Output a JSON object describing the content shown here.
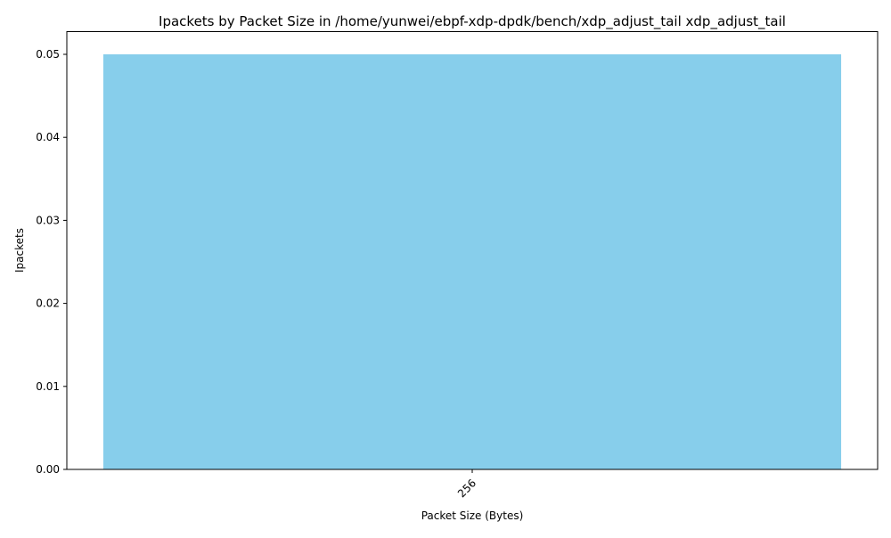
{
  "chart_data": {
    "type": "bar",
    "title": "Ipackets by Packet Size in /home/yunwei/ebpf-xdp-dpdk/bench/xdp_adjust_tail xdp_adjust_tail",
    "xlabel": "Packet Size (Bytes)",
    "ylabel": "Ipackets",
    "categories": [
      "256"
    ],
    "values": [
      0.05
    ],
    "ylim": [
      0,
      0.05
    ],
    "yticks": [
      0.0,
      0.01,
      0.02,
      0.03,
      0.04,
      0.05
    ],
    "ytick_labels": [
      "0.00",
      "0.01",
      "0.02",
      "0.03",
      "0.04",
      "0.05"
    ],
    "x_tick_rotation": 45,
    "bar_color": "#87ceeb",
    "grid": false,
    "legend": "none"
  }
}
